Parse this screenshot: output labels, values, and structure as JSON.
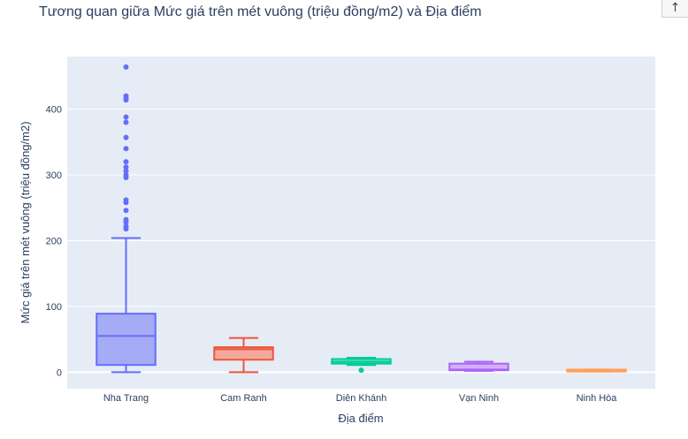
{
  "chart_data": {
    "type": "box",
    "title": "Tương quan giữa Mức giá trên mét vuông (triệu đồng/m2) và Địa điểm",
    "xlabel": "Địa điểm",
    "ylabel": "Mức giá trên mét vuông (triệu đồng/m2)",
    "ylim": [
      -25,
      480
    ],
    "yticks": [
      0,
      100,
      200,
      300,
      400
    ],
    "grid": true,
    "legend": "none",
    "categories": [
      "Nha Trang",
      "Cam Ranh",
      "Diên Khánh",
      "Vạn Ninh",
      "Ninh Hòa"
    ],
    "boxes": [
      {
        "category": "Nha Trang",
        "color": "#636efa",
        "fill": "#a6abf5",
        "min": 0,
        "q1": 11,
        "median": 55,
        "q3": 89,
        "max": 204,
        "outliers": [
          218,
          222,
          228,
          232,
          246,
          258,
          262,
          296,
          300,
          306,
          312,
          320,
          340,
          357,
          380,
          388,
          414,
          416,
          420,
          464
        ]
      },
      {
        "category": "Cam Ranh",
        "color": "#ef553b",
        "fill": "#f4a99c",
        "min": 0,
        "q1": 19,
        "median": 35,
        "q3": 38,
        "max": 52,
        "outliers": []
      },
      {
        "category": "Diên Khánh",
        "color": "#00cc96",
        "fill": "#7fe3c9",
        "min": 11,
        "q1": 13,
        "median": 16,
        "q3": 20,
        "max": 22,
        "outliers": [
          3
        ]
      },
      {
        "category": "Vạn Ninh",
        "color": "#ab63fa",
        "fill": "#d2b0f7",
        "min": 2,
        "q1": 3,
        "median": 4,
        "q3": 13,
        "max": 16,
        "outliers": []
      },
      {
        "category": "Ninh Hòa",
        "color": "#ffa15a",
        "fill": "#ffcfaa",
        "min": 1,
        "q1": 1,
        "median": 3,
        "q3": 4,
        "max": 4,
        "outliers": []
      }
    ]
  },
  "ui": {
    "scroll_button_glyph": "↑"
  }
}
